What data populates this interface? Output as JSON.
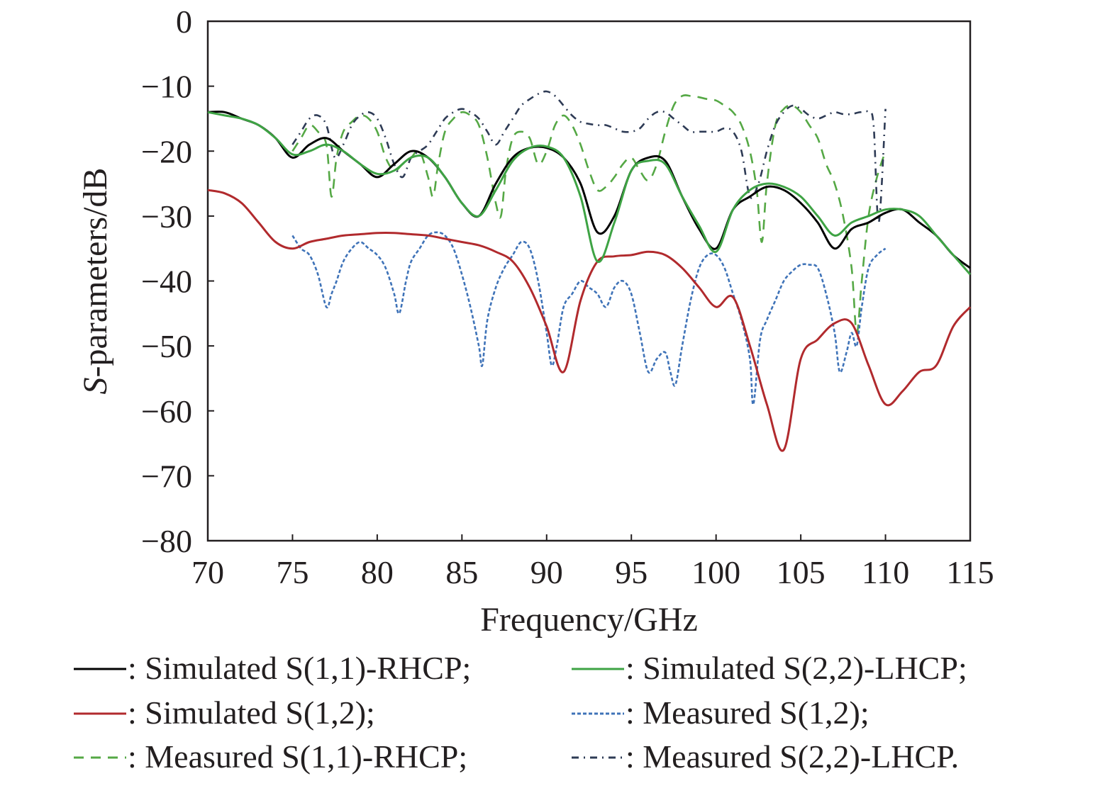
{
  "chart_data": {
    "type": "line",
    "title": "",
    "xlabel": "Frequency/GHz",
    "ylabel_italic": "S",
    "ylabel_rest": "-parameters/dB",
    "xlim": [
      70,
      115
    ],
    "ylim": [
      -80,
      0
    ],
    "xticks": [
      "70",
      "75",
      "80",
      "85",
      "90",
      "95",
      "100",
      "105",
      "110",
      "115"
    ],
    "yticks": [
      "0",
      "−10",
      "−20",
      "−30",
      "−40",
      "−50",
      "−60",
      "−70",
      "−80"
    ],
    "grid": false,
    "legend_position": "bottom",
    "series": [
      {
        "name": "Simulated S(1,1)-RHCP;",
        "legend_prefix": ": ",
        "color": "#000000",
        "dash": "solid",
        "x": [
          70,
          71,
          72,
          73,
          74,
          75,
          76,
          77,
          78,
          79,
          80,
          81,
          82,
          83,
          84,
          85,
          86,
          87,
          88,
          89,
          90,
          91,
          92,
          93,
          94,
          95,
          96,
          97,
          98,
          99,
          100,
          101,
          102,
          103,
          104,
          105,
          106,
          107,
          108,
          109,
          110,
          111,
          112,
          113,
          114,
          115
        ],
        "y": [
          -14,
          -14,
          -15,
          -16,
          -18,
          -21,
          -19,
          -18,
          -20,
          -22,
          -24,
          -22,
          -20,
          -21,
          -24,
          -28,
          -30,
          -25,
          -21,
          -19.5,
          -19.5,
          -21,
          -25,
          -32.5,
          -30,
          -23,
          -21,
          -21.5,
          -27,
          -32,
          -35,
          -29,
          -27,
          -25.5,
          -26,
          -28,
          -31,
          -35,
          -32,
          -31,
          -29.5,
          -29,
          -31,
          -33,
          -36,
          -38
        ]
      },
      {
        "name": "Simulated S(1,2);",
        "legend_prefix": ": ",
        "color": "#b12a2d",
        "dash": "solid",
        "x": [
          70,
          71,
          72,
          73,
          74,
          75,
          76,
          77,
          78,
          79,
          80,
          81,
          82,
          83,
          84,
          85,
          86,
          87,
          88,
          89,
          90,
          91,
          92,
          93,
          94,
          95,
          96,
          97,
          98,
          99,
          100,
          101,
          102,
          103,
          104,
          105,
          106,
          107,
          108,
          109,
          110,
          111,
          112,
          113,
          114,
          115
        ],
        "y": [
          -26,
          -26.5,
          -28,
          -31,
          -34,
          -35,
          -34,
          -33.5,
          -33,
          -32.8,
          -32.6,
          -32.6,
          -32.8,
          -33,
          -33.5,
          -34,
          -34.5,
          -35.5,
          -37,
          -41,
          -47,
          -54,
          -43,
          -37,
          -36.2,
          -36,
          -35.5,
          -36,
          -38,
          -41,
          -44,
          -42.5,
          -50,
          -59,
          -66,
          -52,
          -49,
          -46.5,
          -46.5,
          -53,
          -59,
          -57,
          -54,
          -53,
          -47,
          -44
        ]
      },
      {
        "name": "Measured S(1,1)-RHCP;",
        "legend_prefix": ": ",
        "color": "#55a845",
        "dash": "dash",
        "x": [
          75,
          75.5,
          76,
          76.5,
          77,
          77.3,
          77.6,
          78,
          78.5,
          79,
          79.5,
          80,
          80.5,
          81,
          81.5,
          82,
          82.5,
          83,
          83.3,
          83.6,
          84,
          84.5,
          85,
          85.5,
          86,
          86.5,
          87,
          87.3,
          87.6,
          88,
          88.5,
          89,
          89.5,
          90,
          90.5,
          91,
          91.5,
          92,
          92.5,
          93,
          93.5,
          94,
          94.5,
          95,
          95.5,
          96,
          96.5,
          97,
          97.5,
          98,
          98.5,
          99,
          99.5,
          100,
          100.5,
          101,
          101.5,
          102,
          102.4,
          102.7,
          103,
          103.5,
          104,
          104.5,
          105,
          105.5,
          106,
          106.5,
          107,
          107.5,
          108,
          108.3,
          108.6,
          109,
          109.5,
          110
        ],
        "y": [
          -20,
          -18,
          -16,
          -17,
          -19,
          -27,
          -21,
          -17,
          -15.5,
          -14.5,
          -15,
          -17,
          -21,
          -23,
          -22,
          -21,
          -20,
          -24,
          -27,
          -22,
          -17,
          -15,
          -14,
          -14.5,
          -16,
          -21,
          -28,
          -30,
          -23,
          -18,
          -17,
          -18,
          -22,
          -20,
          -16,
          -14.5,
          -16,
          -19,
          -23,
          -26,
          -25.5,
          -24,
          -22,
          -21,
          -23,
          -24.5,
          -22,
          -17,
          -13,
          -11.5,
          -11.5,
          -11.7,
          -12,
          -12.2,
          -13,
          -14,
          -16,
          -20,
          -26,
          -34,
          -25,
          -16,
          -13.5,
          -13,
          -14,
          -16,
          -18,
          -22,
          -25,
          -30,
          -38,
          -48,
          -40,
          -30,
          -24,
          -20
        ]
      },
      {
        "name": "Simulated S(2,2)-LHCP;",
        "legend_prefix": ": ",
        "color": "#3ea344",
        "dash": "solid",
        "x": [
          70,
          71,
          72,
          73,
          74,
          75,
          76,
          77,
          78,
          79,
          80,
          81,
          82,
          83,
          84,
          85,
          86,
          87,
          88,
          89,
          90,
          91,
          92,
          93,
          94,
          95,
          96,
          97,
          98,
          99,
          100,
          101,
          102,
          103,
          104,
          105,
          106,
          107,
          108,
          109,
          110,
          111,
          112,
          113,
          114,
          115
        ],
        "y": [
          -14,
          -14.5,
          -15,
          -16,
          -18,
          -20.5,
          -20,
          -19,
          -20,
          -22,
          -23.5,
          -23,
          -21,
          -21,
          -24,
          -28,
          -30,
          -26,
          -21.5,
          -19.5,
          -19.3,
          -21,
          -27,
          -37,
          -31,
          -23,
          -21.5,
          -22,
          -27,
          -31.5,
          -35.5,
          -29,
          -26,
          -25,
          -25.5,
          -27,
          -30,
          -33,
          -31,
          -30,
          -29,
          -29,
          -30,
          -33,
          -36,
          -39
        ]
      },
      {
        "name": "Measured S(1,2);",
        "legend_prefix": ": ",
        "color": "#3f73b8",
        "dash": "dotdense",
        "x": [
          75,
          75.5,
          76,
          76.5,
          77,
          77.3,
          77.6,
          78,
          78.5,
          79,
          79.5,
          80,
          80.5,
          81,
          81.3,
          81.7,
          82,
          82.5,
          83,
          83.5,
          84,
          84.5,
          85,
          85.5,
          86,
          86.2,
          86.5,
          87,
          87.5,
          88,
          88.5,
          89,
          89.5,
          90,
          90.3,
          90.6,
          91,
          91.5,
          92,
          92.5,
          93,
          93.5,
          94,
          94.5,
          95,
          95.5,
          96,
          96.5,
          97,
          97.3,
          97.6,
          98,
          98.5,
          99,
          99.5,
          100,
          100.5,
          101,
          101.5,
          102,
          102.2,
          102.6,
          103,
          103.5,
          104,
          104.5,
          105,
          105.5,
          106,
          106.5,
          107,
          107.3,
          107.7,
          108,
          108.3,
          108.6,
          109,
          109.5,
          110
        ],
        "y": [
          -33,
          -35,
          -36,
          -39,
          -44,
          -42,
          -40,
          -37,
          -35,
          -34,
          -35,
          -36,
          -38,
          -42,
          -45,
          -40,
          -37,
          -35,
          -33,
          -32.5,
          -33,
          -35,
          -39,
          -44,
          -50,
          -53,
          -46,
          -41,
          -38,
          -36,
          -34,
          -35,
          -40,
          -48,
          -53,
          -50,
          -44,
          -42,
          -40,
          -41,
          -42,
          -44,
          -41,
          -40,
          -42,
          -48,
          -54,
          -52,
          -51,
          -54,
          -56,
          -50,
          -43,
          -38,
          -36,
          -36,
          -38,
          -42,
          -46,
          -52,
          -59,
          -49,
          -46,
          -43,
          -40,
          -38.5,
          -37.5,
          -37.5,
          -38,
          -42,
          -48,
          -54,
          -51,
          -48,
          -50,
          -44,
          -38,
          -36,
          -35
        ]
      },
      {
        "name": "Measured S(2,2)-LHCP.",
        "legend_prefix": ": ",
        "color": "#2e3b55",
        "dash": "dashdot",
        "x": [
          75,
          75.5,
          76,
          76.5,
          77,
          77.5,
          78,
          78.5,
          79,
          79.5,
          80,
          80.5,
          81,
          81.5,
          82,
          82.5,
          83,
          83.5,
          84,
          84.5,
          85,
          85.5,
          86,
          86.5,
          87,
          87.5,
          88,
          88.5,
          89,
          89.5,
          90,
          90.5,
          91,
          91.5,
          92,
          92.5,
          93,
          93.5,
          94,
          94.5,
          95,
          95.5,
          96,
          96.5,
          97,
          97.5,
          98,
          98.5,
          99,
          99.5,
          100,
          100.5,
          101,
          101.5,
          102,
          102.5,
          103,
          103.5,
          104,
          104.5,
          105,
          105.5,
          106,
          106.5,
          107,
          107.5,
          108,
          108.5,
          109,
          109.3,
          109.6,
          110
        ],
        "y": [
          -19,
          -17,
          -15,
          -14.5,
          -16,
          -21,
          -19,
          -16,
          -14.5,
          -14,
          -15,
          -18,
          -22,
          -24,
          -21,
          -20,
          -19,
          -17,
          -15,
          -14,
          -13.5,
          -14,
          -15,
          -17,
          -19,
          -17,
          -15,
          -13,
          -12,
          -11.2,
          -10.8,
          -11.5,
          -13,
          -14.5,
          -15.5,
          -15.8,
          -16,
          -16,
          -16.5,
          -17,
          -17,
          -16.5,
          -15,
          -14,
          -14,
          -15,
          -16,
          -17,
          -17,
          -17,
          -17,
          -16.5,
          -17,
          -20,
          -27,
          -25,
          -20,
          -16,
          -14,
          -13,
          -13.5,
          -14.5,
          -15,
          -14.5,
          -14,
          -14.3,
          -14.3,
          -14,
          -14,
          -16,
          -31,
          -13.5
        ]
      }
    ]
  }
}
